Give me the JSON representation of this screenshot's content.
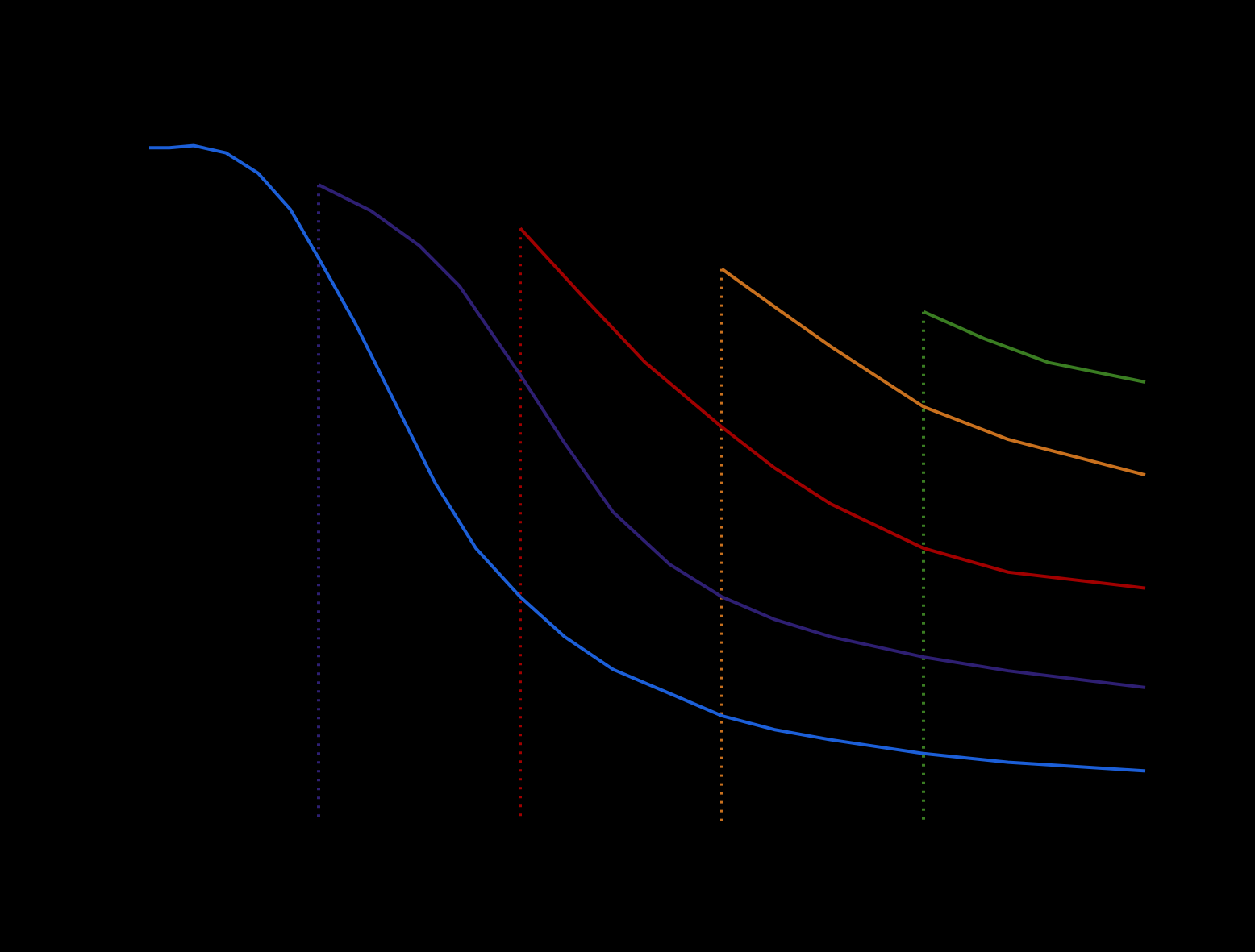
{
  "chart_data": {
    "type": "line",
    "xlim": [
      0,
      5.64
    ],
    "ylim": [
      0,
      1
    ],
    "background": "#000000",
    "series": [
      {
        "color": "#1c5fd8",
        "x": [
          0.16,
          0.26,
          0.38,
          0.54,
          0.7,
          0.86,
          1.0,
          1.18,
          1.38,
          1.58,
          1.78,
          2.0,
          2.22,
          2.46,
          2.74,
          3.0,
          3.26,
          3.54,
          4.0,
          4.42,
          5.1
        ],
        "values": [
          0.963,
          0.963,
          0.966,
          0.956,
          0.928,
          0.878,
          0.811,
          0.722,
          0.611,
          0.5,
          0.411,
          0.344,
          0.289,
          0.244,
          0.211,
          0.18,
          0.161,
          0.147,
          0.128,
          0.116,
          0.104
        ]
      },
      {
        "color": "#2e1f72",
        "x": [
          1.0,
          1.26,
          1.5,
          1.7,
          2.0,
          2.22,
          2.46,
          2.74,
          3.0,
          3.26,
          3.54,
          4.0,
          4.42,
          5.1
        ],
        "values": [
          0.912,
          0.876,
          0.828,
          0.772,
          0.65,
          0.556,
          0.461,
          0.389,
          0.344,
          0.313,
          0.289,
          0.261,
          0.242,
          0.219
        ]
      },
      {
        "color": "#a00000",
        "x": [
          2.0,
          2.3,
          2.62,
          3.0,
          3.26,
          3.54,
          4.0,
          4.42,
          5.1
        ],
        "values": [
          0.852,
          0.761,
          0.667,
          0.578,
          0.522,
          0.472,
          0.411,
          0.378,
          0.356
        ]
      },
      {
        "color": "#c8701e",
        "x": [
          3.0,
          3.26,
          3.54,
          4.0,
          4.42,
          5.1
        ],
        "values": [
          0.796,
          0.744,
          0.689,
          0.606,
          0.561,
          0.512
        ]
      },
      {
        "color": "#3a7d22",
        "x": [
          4.0,
          4.3,
          4.62,
          5.1
        ],
        "values": [
          0.737,
          0.7,
          0.667,
          0.64
        ]
      }
    ],
    "vlines": [
      {
        "x": 1,
        "color": "#2e1f72"
      },
      {
        "x": 2,
        "color": "#a00000"
      },
      {
        "x": 3,
        "color": "#c8701e"
      },
      {
        "x": 4,
        "color": "#3a7d22"
      }
    ]
  }
}
